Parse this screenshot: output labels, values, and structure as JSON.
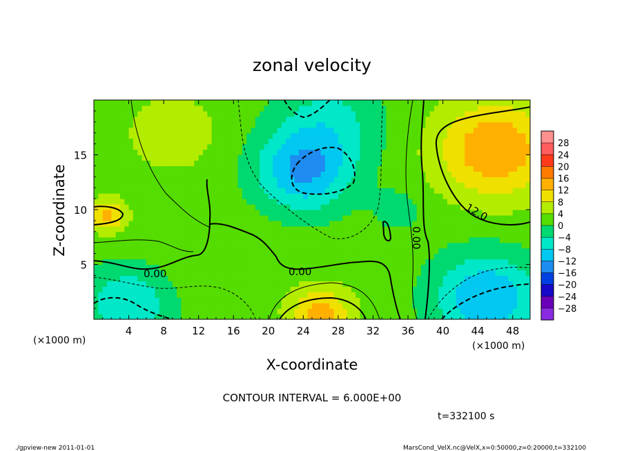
{
  "chart_data": {
    "type": "heatmap",
    "title": "zonal velocity",
    "xlabel": "X-coordinate",
    "ylabel": "Z-coordinate",
    "x_unit": "(×1000 m)",
    "y_unit": "(×1000 m)",
    "xlim": [
      0,
      50
    ],
    "ylim": [
      0,
      20
    ],
    "x_ticks": [
      "4",
      "8",
      "12",
      "16",
      "20",
      "24",
      "28",
      "32",
      "36",
      "40",
      "44",
      "48"
    ],
    "y_ticks": [
      "5",
      "10",
      "15"
    ],
    "contour_interval_text": "CONTOUR INTERVAL = 6.000E+00",
    "time_text": "t=332100 s",
    "contour_labels": [
      "0.00",
      "0.00",
      "0.00",
      "12.0"
    ],
    "colorbar": {
      "levels": [
        "28",
        "24",
        "20",
        "16",
        "12",
        "8",
        "4",
        "0",
        "−4",
        "−8",
        "−12",
        "−16",
        "−20",
        "−24",
        "−28"
      ],
      "colors": [
        "#ff9090",
        "#ff5c5c",
        "#ff3a1a",
        "#ff7a00",
        "#ffb000",
        "#f0e000",
        "#b4ec00",
        "#55dc00",
        "#00d870",
        "#00e8c8",
        "#00c8f0",
        "#1e8cf0",
        "#0040e0",
        "#1808c8",
        "#6a00b8",
        "#8a2be2"
      ]
    },
    "fields": {
      "base": 2,
      "blobs": [
        {
          "x": 46,
          "z": 15.5,
          "r": 6.5,
          "a": 14
        },
        {
          "x": 1.5,
          "z": 9.5,
          "r": 2.2,
          "a": 11
        },
        {
          "x": 26,
          "z": 0.5,
          "r": 3.5,
          "a": 12
        },
        {
          "x": 24,
          "z": 13.5,
          "r": 5.5,
          "a": -14
        },
        {
          "x": 27,
          "z": 18,
          "r": 6,
          "a": -7
        },
        {
          "x": 45,
          "z": 2,
          "r": 6,
          "a": -14
        },
        {
          "x": 4,
          "z": 1.5,
          "r": 5,
          "a": -10
        },
        {
          "x": 35,
          "z": 10,
          "r": 3,
          "a": -4
        },
        {
          "x": 9,
          "z": 17,
          "r": 5,
          "a": 5
        },
        {
          "x": 14,
          "z": 5,
          "r": 6,
          "a": 2
        }
      ]
    }
  },
  "footer": {
    "left": "./gpview-new  2011-01-01",
    "right": "MarsCond_VelX.nc@VelX,x=0:50000,z=0:20000,t=332100"
  }
}
